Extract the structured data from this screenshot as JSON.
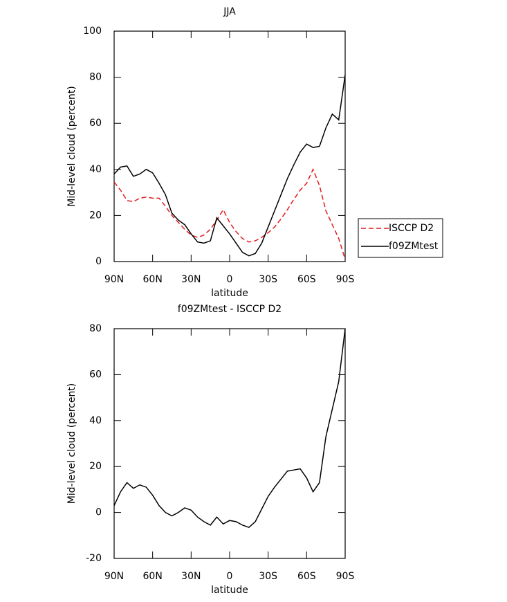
{
  "chart_data": [
    {
      "type": "line",
      "title": "JJA",
      "xlabel": "latitude",
      "ylabel": "Mid-level cloud (percent)",
      "x": [
        90,
        85,
        80,
        75,
        70,
        65,
        60,
        55,
        50,
        45,
        40,
        35,
        30,
        25,
        20,
        15,
        10,
        5,
        0,
        -5,
        -10,
        -15,
        -20,
        -25,
        -30,
        -35,
        -40,
        -45,
        -50,
        -55,
        -60,
        -65,
        -70,
        -75,
        -80,
        -85,
        -90
      ],
      "xlim": [
        90,
        -90
      ],
      "xticks": [
        {
          "value": 90,
          "label": "90N"
        },
        {
          "value": 60,
          "label": "60N"
        },
        {
          "value": 30,
          "label": "30N"
        },
        0,
        {
          "value": -30,
          "label": "30S"
        },
        {
          "value": -60,
          "label": "60S"
        },
        {
          "value": -90,
          "label": "90S"
        }
      ],
      "ylim": [
        0,
        100
      ],
      "yticks": [
        0,
        20,
        40,
        60,
        80,
        100
      ],
      "legend": "right",
      "series": [
        {
          "name": "ISCCP D2",
          "color": "#e41a1c",
          "dash": true,
          "values": [
            34.5,
            31,
            26.5,
            26,
            27.5,
            28,
            27.5,
            27.5,
            24,
            20,
            17,
            14,
            11.5,
            10.5,
            11.5,
            14,
            18,
            22.5,
            17,
            13,
            10,
            8.5,
            9,
            10.5,
            12.5,
            15,
            18.5,
            22.5,
            27,
            31,
            34,
            40,
            33,
            22,
            16,
            10,
            1
          ]
        },
        {
          "name": "f09ZMtest",
          "color": "#000000",
          "dash": false,
          "values": [
            38,
            41,
            41.5,
            37,
            38,
            40,
            38.5,
            34,
            29,
            21,
            18,
            16,
            12,
            8.5,
            8,
            9,
            19,
            15.5,
            12,
            8,
            4,
            2.5,
            3.5,
            8,
            15,
            22,
            29,
            36,
            42,
            47.5,
            51,
            49.5,
            50,
            58,
            64,
            61.5,
            81
          ]
        }
      ]
    },
    {
      "type": "line",
      "title": "f09ZMtest - ISCCP D2",
      "xlabel": "latitude",
      "ylabel": "Mid-level cloud (percent)",
      "x": [
        90,
        85,
        80,
        75,
        70,
        65,
        60,
        55,
        50,
        45,
        40,
        35,
        30,
        25,
        20,
        15,
        10,
        5,
        0,
        -5,
        -10,
        -15,
        -20,
        -25,
        -30,
        -35,
        -40,
        -45,
        -50,
        -55,
        -60,
        -65,
        -70,
        -75,
        -80,
        -85,
        -90
      ],
      "xlim": [
        90,
        -90
      ],
      "xticks": [
        {
          "value": 90,
          "label": "90N"
        },
        {
          "value": 60,
          "label": "60N"
        },
        {
          "value": 30,
          "label": "30N"
        },
        0,
        {
          "value": -30,
          "label": "30S"
        },
        {
          "value": -60,
          "label": "60S"
        },
        {
          "value": -90,
          "label": "90S"
        }
      ],
      "ylim": [
        -20,
        80
      ],
      "yticks": [
        -20,
        0,
        20,
        40,
        60,
        80
      ],
      "series": [
        {
          "color": "#000000",
          "dash": false,
          "values": [
            3,
            9,
            13,
            10.5,
            12,
            11,
            7.5,
            3,
            0,
            -1.5,
            0,
            2,
            1,
            -2,
            -4,
            -5.5,
            -2,
            -5,
            -3.5,
            -4,
            -5.5,
            -6.5,
            -4,
            1.5,
            7,
            11,
            14.5,
            18,
            18.5,
            19,
            15,
            9,
            13,
            33,
            45,
            57,
            80
          ]
        }
      ]
    }
  ]
}
